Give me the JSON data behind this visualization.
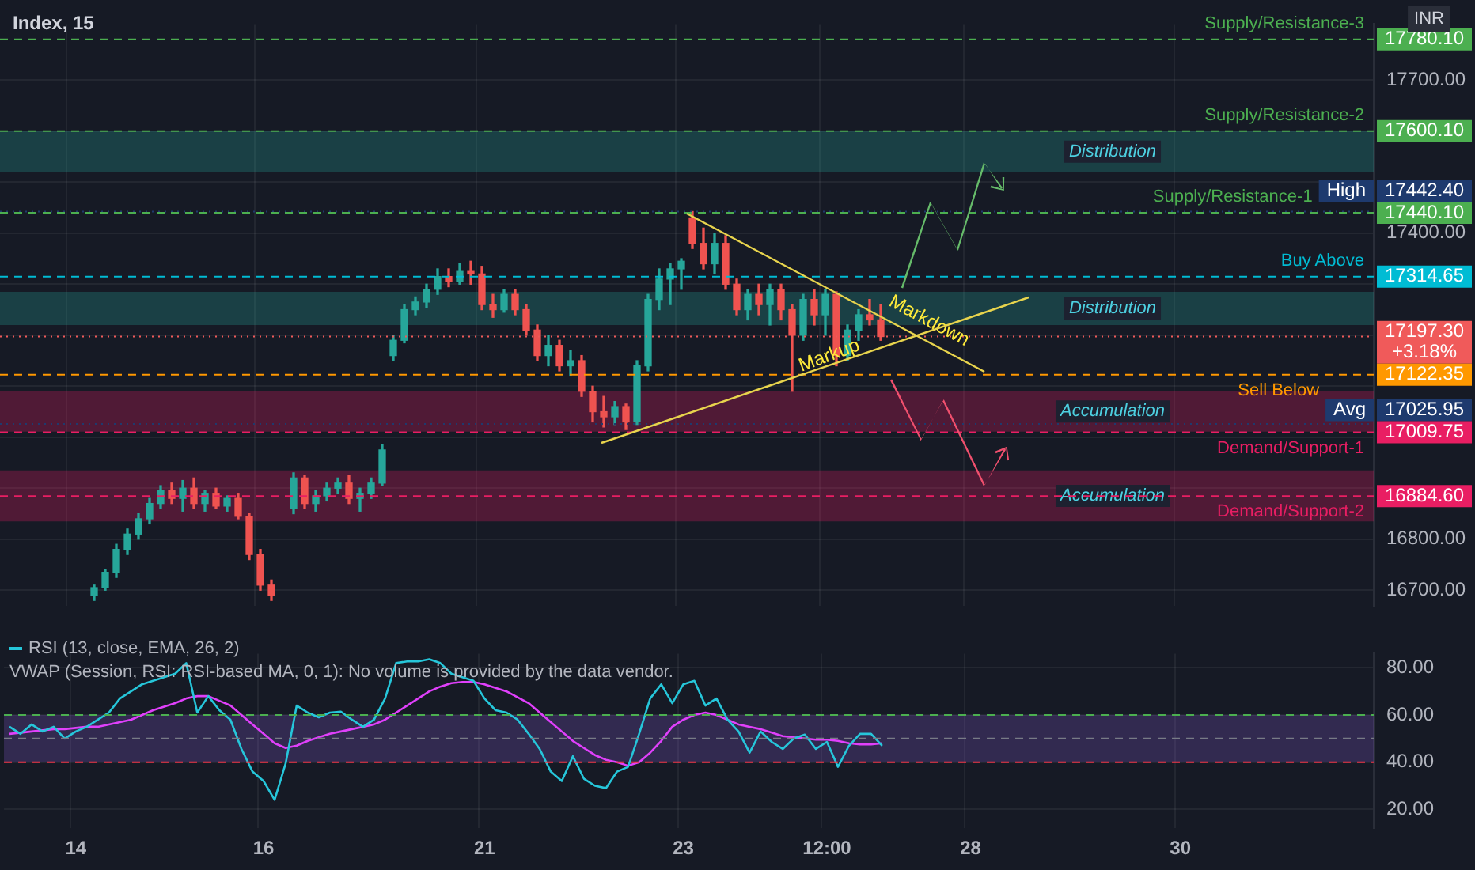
{
  "chart_data": [
    {
      "type": "candlestick",
      "title": "Index, 15",
      "categories": [
        null,
        null,
        null,
        null,
        null,
        null,
        null,
        null,
        null,
        null,
        null,
        null,
        null,
        null,
        null,
        null,
        null,
        null,
        null,
        null,
        null,
        null,
        null,
        null,
        null,
        null,
        null,
        null,
        null,
        null,
        null,
        null,
        null,
        null,
        null,
        null,
        null,
        null,
        null,
        null,
        null,
        null,
        null,
        null,
        null,
        null,
        null,
        null,
        null,
        null,
        null,
        null,
        null,
        null,
        null,
        null,
        null,
        null,
        null,
        null,
        null,
        null,
        null,
        null,
        null,
        null,
        null,
        null,
        null,
        null,
        null,
        null,
        null,
        null,
        null,
        null,
        null,
        null,
        null,
        null,
        null,
        null,
        null,
        null,
        null,
        null,
        null,
        null,
        null,
        null,
        null,
        null,
        null,
        null,
        null,
        null,
        null,
        null,
        null,
        null,
        null,
        null,
        null,
        null,
        null,
        null,
        null,
        null,
        null,
        null,
        null,
        null,
        null,
        null,
        null,
        null,
        null,
        null,
        null,
        null,
        null,
        null,
        null,
        null
      ],
      "ohlc": [
        null,
        null,
        null,
        null,
        null,
        null,
        null,
        null,
        [
          16690,
          16710,
          16680,
          16705
        ],
        [
          16705,
          16740,
          16700,
          16735
        ],
        [
          16735,
          16790,
          16725,
          16780
        ],
        [
          16780,
          16820,
          16770,
          16810
        ],
        [
          16810,
          16850,
          16800,
          16840
        ],
        [
          16840,
          16880,
          16830,
          16870
        ],
        [
          16870,
          16905,
          16860,
          16895
        ],
        [
          16895,
          16910,
          16870,
          16880
        ],
        [
          16880,
          16915,
          16855,
          16900
        ],
        [
          16900,
          16920,
          16860,
          16870
        ],
        [
          16870,
          16895,
          16855,
          16890
        ],
        [
          16890,
          16900,
          16860,
          16865
        ],
        [
          16865,
          16885,
          16855,
          16880
        ],
        [
          16880,
          16890,
          16840,
          16845
        ],
        [
          16845,
          16850,
          16760,
          16770
        ],
        [
          16770,
          16780,
          16700,
          16710
        ],
        [
          16710,
          16720,
          16680,
          16690
        ],
        null,
        [
          16860,
          16930,
          16850,
          16920
        ],
        [
          16920,
          16925,
          16860,
          16870
        ],
        [
          16870,
          16895,
          16855,
          16885
        ],
        [
          16885,
          16910,
          16875,
          16900
        ],
        [
          16900,
          16920,
          16890,
          16910
        ],
        [
          16910,
          16925,
          16870,
          16880
        ],
        [
          16880,
          16900,
          16855,
          16890
        ],
        [
          16890,
          16920,
          16880,
          16910
        ],
        [
          16910,
          16985,
          16905,
          16975
        ],
        [
          17160,
          17200,
          17150,
          17190
        ],
        [
          17190,
          17260,
          17185,
          17250
        ],
        [
          17250,
          17275,
          17240,
          17265
        ],
        [
          17265,
          17300,
          17255,
          17290
        ],
        [
          17290,
          17330,
          17280,
          17315
        ],
        [
          17315,
          17330,
          17295,
          17305
        ],
        [
          17305,
          17340,
          17300,
          17325
        ],
        [
          17325,
          17345,
          17300,
          17320
        ],
        [
          17320,
          17335,
          17250,
          17260
        ],
        [
          17260,
          17280,
          17235,
          17250
        ],
        [
          17250,
          17290,
          17245,
          17280
        ],
        [
          17280,
          17290,
          17240,
          17250
        ],
        [
          17250,
          17260,
          17200,
          17210
        ],
        [
          17210,
          17220,
          17150,
          17160
        ],
        [
          17160,
          17200,
          17140,
          17180
        ],
        [
          17180,
          17190,
          17130,
          17140
        ],
        [
          17140,
          17170,
          17120,
          17150
        ],
        [
          17150,
          17160,
          17080,
          17090
        ],
        [
          17090,
          17100,
          17030,
          17050
        ],
        [
          17050,
          17080,
          17020,
          17040
        ],
        [
          17040,
          17070,
          17025,
          17060
        ],
        [
          17060,
          17065,
          17015,
          17030
        ],
        [
          17030,
          17150,
          17025,
          17140
        ],
        [
          17140,
          17280,
          17130,
          17270
        ],
        [
          17270,
          17330,
          17250,
          17310
        ],
        [
          17310,
          17340,
          17260,
          17330
        ],
        [
          17330,
          17350,
          17290,
          17345
        ],
        [
          17430,
          17442.4,
          17370,
          17380
        ],
        [
          17380,
          17410,
          17330,
          17340
        ],
        [
          17340,
          17400,
          17320,
          17380
        ],
        [
          17380,
          17395,
          17290,
          17300
        ],
        [
          17300,
          17310,
          17240,
          17250
        ],
        [
          17250,
          17290,
          17230,
          17280
        ],
        [
          17280,
          17300,
          17240,
          17260
        ],
        [
          17260,
          17300,
          17220,
          17290
        ],
        [
          17290,
          17300,
          17230,
          17250
        ],
        [
          17250,
          17260,
          17090,
          17200
        ],
        [
          17200,
          17280,
          17190,
          17270
        ],
        [
          17270,
          17290,
          17220,
          17240
        ],
        [
          17240,
          17290,
          17200,
          17280
        ],
        [
          17280,
          17285,
          17140,
          17160
        ],
        [
          17160,
          17220,
          17150,
          17210
        ],
        [
          17210,
          17250,
          17190,
          17240
        ],
        [
          17240,
          17270,
          17220,
          17230
        ],
        [
          17230,
          17260,
          17190,
          17197.3
        ],
        null,
        null,
        null,
        null,
        null,
        null,
        null,
        null,
        null,
        null,
        null,
        null,
        null,
        null,
        null,
        null,
        null,
        null,
        null,
        null,
        null,
        null,
        null,
        null,
        null,
        null,
        null,
        null,
        null,
        null,
        null,
        null,
        null,
        null,
        null,
        null,
        null,
        null,
        null,
        null,
        null,
        null,
        null,
        null
      ],
      "colors": [
        null,
        null,
        null,
        null,
        null,
        null,
        null,
        null,
        "#26a69a",
        "#26a69a",
        "#26a69a",
        "#26a69a",
        "#26a69a",
        "#26a69a",
        "#26a69a",
        "#ef5350",
        "#26a69a",
        "#ef5350",
        "#26a69a",
        "#ef5350",
        "#26a69a",
        "#ef5350",
        "#ef5350",
        "#ef5350",
        "#ef5350",
        null,
        "#26a69a",
        "#ef5350",
        "#26a69a",
        "#26a69a",
        "#26a69a",
        "#ef5350",
        "#26a69a",
        "#26a69a",
        "#26a69a",
        "#26a69a",
        "#26a69a",
        "#26a69a",
        "#26a69a",
        "#26a69a",
        "#ef5350",
        "#26a69a",
        "#ef5350",
        "#ef5350",
        "#ef5350",
        "#26a69a",
        "#ef5350",
        "#ef5350",
        "#ef5350",
        "#26a69a",
        "#ef5350",
        "#26a69a",
        "#ef5350",
        "#ef5350",
        "#ef5350",
        "#26a69a",
        "#ef5350",
        "#26a69a",
        "#26a69a",
        "#26a69a",
        "#26a69a",
        "#26a69a",
        "#ef5350",
        "#ef5350",
        "#26a69a",
        "#ef5350",
        "#ef5350",
        "#26a69a",
        "#ef5350",
        "#26a69a",
        "#ef5350",
        "#ef5350",
        "#26a69a",
        "#ef5350",
        "#26a69a",
        "#ef5350",
        "#26a69a",
        "#26a69a",
        "#ef5350",
        "#ef5350",
        null,
        null,
        null,
        null,
        null,
        null,
        null,
        null,
        null,
        null,
        null,
        null,
        null,
        null,
        null,
        null,
        null,
        null,
        null,
        null,
        null,
        null,
        null,
        null,
        null,
        null,
        null,
        null,
        null,
        null,
        null,
        null,
        null,
        null,
        null,
        null,
        null,
        null,
        null,
        null,
        null,
        null,
        null,
        null
      ],
      "ylim": [
        16670,
        17810
      ],
      "yticks": [
        {
          "value": 16700,
          "label": "16700.00"
        },
        {
          "value": 16800,
          "label": "16800.00"
        },
        {
          "value": 16900,
          "label": null
        },
        {
          "value": 17000,
          "label": null
        },
        {
          "value": 17100,
          "label": null
        },
        {
          "value": 17200,
          "label": null
        },
        {
          "value": 17300,
          "label": null
        },
        {
          "value": 17400,
          "label": "17400.00"
        },
        {
          "value": 17500,
          "label": null
        },
        {
          "value": 17600,
          "label": null
        },
        {
          "value": 17700,
          "label": "17700.00"
        }
      ],
      "tick_labels": "y",
      "grid": true,
      "bands": [
        {
          "axis": "y",
          "from": 17520,
          "to": 17600,
          "label": "Distribution",
          "color": "#26a69a"
        },
        {
          "axis": "y",
          "from": 17220,
          "to": 17285,
          "label": "Distribution",
          "color": "#26a69a"
        },
        {
          "axis": "y",
          "from": 17011,
          "to": 17090,
          "label": "Accumulation",
          "color": "#e91e63"
        },
        {
          "axis": "y",
          "from": 16835,
          "to": 16935,
          "label": "Accumulation",
          "color": "#e91e63"
        }
      ],
      "ref_lines": [
        {
          "axis": "y",
          "value": 17780.1,
          "label": "17780.10",
          "color": "#4caf50",
          "line_style": "dashed"
        },
        {
          "axis": "y",
          "value": 17600.1,
          "label": "17600.10",
          "color": "#4caf50",
          "line_style": "dashed"
        },
        {
          "axis": "y",
          "value": 17442.4,
          "label": "17442.40",
          "color": "#1e3a6e",
          "line_style": "dotted"
        },
        {
          "axis": "y",
          "value": 17440.1,
          "label": "17440.10",
          "color": "#4caf50",
          "line_style": "dashed"
        },
        {
          "axis": "y",
          "value": 17314.65,
          "label": "17314.65",
          "color": "#00bcd4",
          "line_style": "dashed"
        },
        {
          "axis": "y",
          "value": 17197.3,
          "label": "17197.30",
          "color": "#f05a5a",
          "line_style": "dotted"
        },
        {
          "axis": "y",
          "value": 17122.35,
          "label": "17122.35",
          "color": "#ff9800",
          "line_style": "dashed"
        },
        {
          "axis": "y",
          "value": 17025.95,
          "label": "17025.95",
          "color": "#1e3a6e",
          "line_style": "dotted"
        },
        {
          "axis": "y",
          "value": 17009.75,
          "label": "17009.75",
          "color": "#e91e63",
          "line_style": "dashed"
        },
        {
          "axis": "y",
          "value": 16884.6,
          "label": "16884.60",
          "color": "#e91e63",
          "line_style": "dashed"
        }
      ],
      "annotations": [
        "Markdown",
        "Markup",
        "INR",
        "+3.18%",
        {
          "text": "Supply/Resistance-3",
          "y": 17780.1
        },
        {
          "text": "Supply/Resistance-2",
          "y": 17600.1
        },
        {
          "text": "High",
          "y": 17442.4
        },
        {
          "text": "Supply/Resistance-1",
          "y": 17440.1
        },
        {
          "text": "Buy Above",
          "y": 17314.65
        },
        {
          "text": "Sell Below",
          "y": 17122.35
        },
        {
          "text": "Avg",
          "y": 17025.95
        },
        {
          "text": "Demand/Support-1",
          "y": 17009.75
        },
        {
          "text": "Demand/Support-2",
          "y": 16884.6
        }
      ]
    },
    {
      "type": "line",
      "categories": [
        null,
        null,
        null,
        null,
        null,
        null,
        "14",
        null,
        null,
        null,
        null,
        null,
        null,
        null,
        null,
        null,
        null,
        null,
        null,
        null,
        null,
        null,
        null,
        "16",
        null,
        null,
        null,
        null,
        null,
        null,
        null,
        null,
        null,
        null,
        null,
        null,
        null,
        null,
        null,
        null,
        null,
        null,
        null,
        "21",
        null,
        null,
        null,
        null,
        null,
        null,
        null,
        null,
        null,
        null,
        null,
        null,
        null,
        null,
        null,
        null,
        null,
        "23",
        null,
        null,
        null,
        null,
        null,
        null,
        null,
        null,
        null,
        null,
        null,
        null,
        "12:00",
        null,
        null,
        null,
        null,
        null,
        null,
        null,
        null,
        null,
        null,
        null,
        null,
        "28",
        null,
        null,
        null,
        null,
        null,
        null,
        null,
        null,
        null,
        null,
        null,
        null,
        null,
        null,
        null,
        null,
        null,
        null,
        "30",
        null,
        null,
        null,
        null,
        null,
        null,
        null,
        null,
        null,
        null,
        null,
        null,
        null,
        null,
        null,
        null,
        null
      ],
      "series": [
        {
          "name": "RSI (13, close, EMA, 26, 2)",
          "color": "#26c6da",
          "values": [
            55,
            52,
            56,
            53,
            55,
            50,
            53,
            55,
            58,
            61,
            67,
            70,
            73,
            74.5,
            76,
            77.5,
            82,
            61,
            68,
            62,
            58,
            45.6,
            36,
            32,
            24,
            39.5,
            64,
            61,
            59,
            61,
            61.4,
            58,
            55,
            58,
            67,
            82,
            82.7,
            82.7,
            83.6,
            82,
            77.5,
            76,
            74.5,
            67,
            62,
            61,
            58,
            52,
            45.6,
            36,
            32,
            42.5,
            33,
            30,
            29,
            36,
            38,
            52,
            67,
            73,
            65,
            73,
            74.5,
            64,
            67,
            58,
            53,
            44,
            53,
            48.6,
            45.6,
            50,
            51.7,
            45.6,
            48.6,
            38,
            47,
            52,
            52,
            47,
            null,
            null,
            null,
            null,
            null,
            null,
            null,
            null,
            null,
            null,
            null,
            null,
            null,
            null,
            null,
            null,
            null,
            null,
            null,
            null,
            null,
            null,
            null,
            null,
            null,
            null,
            null,
            null,
            null,
            null,
            null,
            null,
            null,
            null,
            null,
            null,
            null,
            null,
            null,
            null,
            null,
            null,
            null,
            null
          ]
        },
        {
          "color": "#e040fb",
          "values": [
            52,
            52.5,
            53,
            53.5,
            54,
            54,
            54.5,
            55,
            55,
            56,
            57,
            58,
            60,
            62,
            63.5,
            65,
            67,
            68,
            68,
            66,
            64,
            60,
            56,
            52,
            48,
            46,
            47,
            49,
            50.5,
            52,
            53,
            54,
            55,
            56,
            58,
            61,
            64,
            67,
            70,
            72,
            73.5,
            74,
            74,
            73,
            71.5,
            70,
            67.5,
            65,
            61,
            57,
            53,
            49,
            46,
            43,
            41,
            40,
            38.5,
            40,
            44,
            49,
            55,
            58,
            60,
            61,
            60,
            58,
            56,
            55,
            54,
            52.5,
            51,
            50.5,
            50,
            49.5,
            49.5,
            49,
            48,
            47.5,
            47.5,
            48,
            null,
            null,
            null,
            null,
            null,
            null,
            null,
            null,
            null,
            null,
            null,
            null,
            null,
            null,
            null,
            null,
            null,
            null,
            null,
            null,
            null,
            null,
            null,
            null,
            null,
            null,
            null,
            null,
            null,
            null,
            null,
            null,
            null,
            null,
            null,
            null,
            null,
            null,
            null,
            null,
            null,
            null,
            null,
            null
          ]
        }
      ],
      "ylim": [
        12,
        86
      ],
      "yticks": [
        {
          "value": 20,
          "label": "20.00"
        },
        {
          "value": 40,
          "label": "40.00"
        },
        {
          "value": 60,
          "label": "60.00"
        },
        {
          "value": 80,
          "label": "80.00"
        }
      ],
      "grid": true,
      "legend": "top left",
      "bands": [
        {
          "axis": "y",
          "from": 40,
          "to": 60,
          "color": "#7e57c2"
        }
      ],
      "ref_lines": [
        {
          "axis": "y",
          "value": 60,
          "color": "#4caf50",
          "line_style": "dashed"
        },
        {
          "axis": "y",
          "value": 50,
          "color": "#787b86",
          "line_style": "dashed"
        },
        {
          "axis": "y",
          "value": 40,
          "color": "#f23645",
          "line_style": "dashed"
        }
      ],
      "annotations": [
        "VWAP (Session, RSI: RSI-based MA, 0, 1): No volume is provided by the data vendor."
      ]
    }
  ]
}
